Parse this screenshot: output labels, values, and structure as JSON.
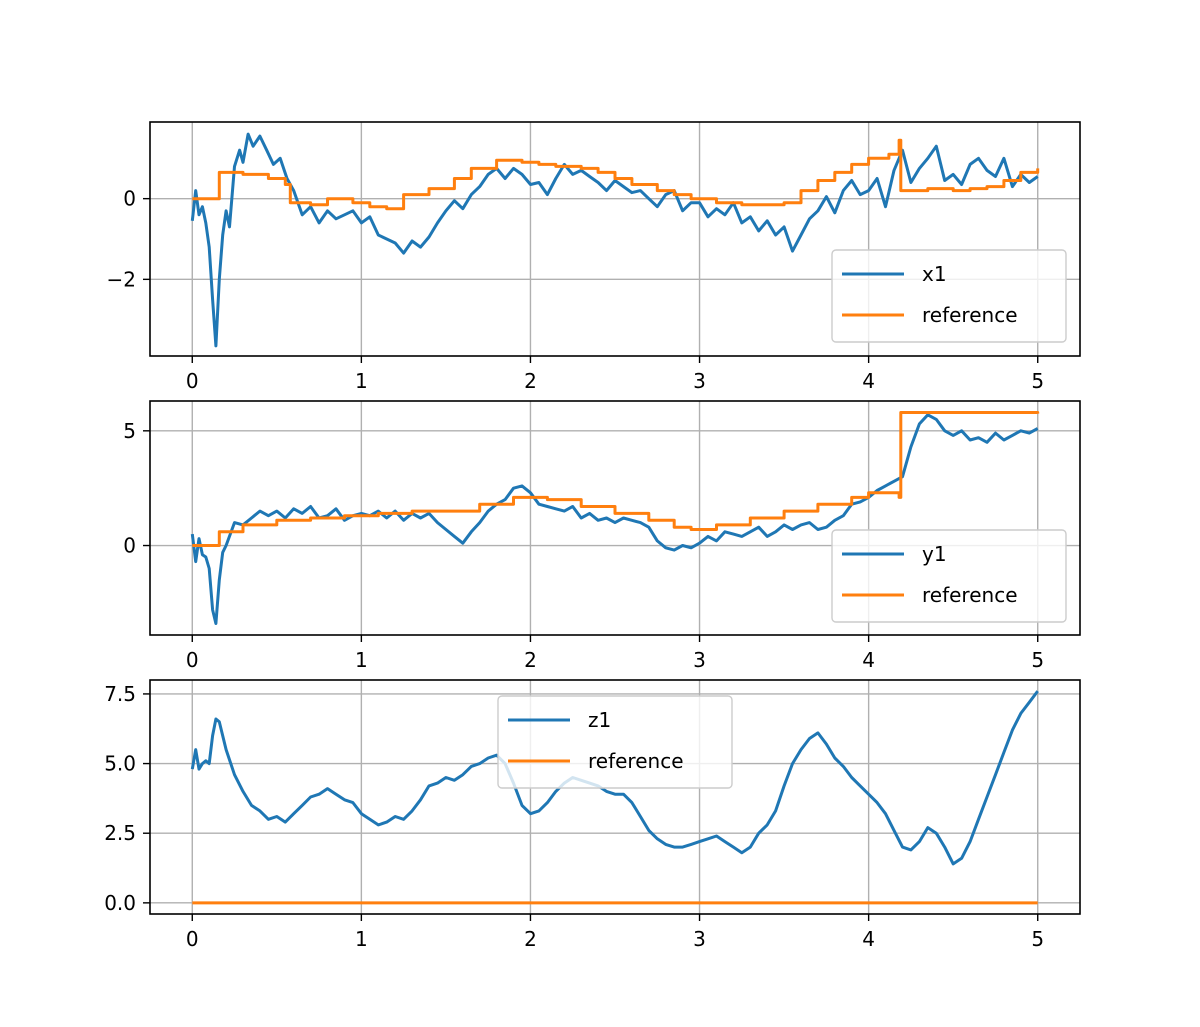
{
  "colors": {
    "series1": "#1f77b4",
    "reference": "#ff7f0e",
    "grid": "#b0b0b0"
  },
  "chart_data": [
    {
      "type": "line",
      "title": "",
      "xlabel": "",
      "ylabel": "",
      "xlim": [
        -0.25,
        5.25
      ],
      "ylim": [
        -3.9,
        1.9
      ],
      "xticks": [
        0,
        1,
        2,
        3,
        4,
        5
      ],
      "xtick_labels": [
        "0",
        "1",
        "2",
        "3",
        "4",
        "5"
      ],
      "yticks": [
        -2,
        0
      ],
      "ytick_labels": [
        "−2",
        "0"
      ],
      "grid": true,
      "legend_position": "lower right",
      "series": [
        {
          "name": "x1",
          "color": "#1f77b4",
          "x": [
            0,
            0.02,
            0.04,
            0.06,
            0.08,
            0.1,
            0.12,
            0.14,
            0.16,
            0.18,
            0.2,
            0.22,
            0.25,
            0.28,
            0.3,
            0.33,
            0.36,
            0.4,
            0.44,
            0.48,
            0.52,
            0.56,
            0.6,
            0.65,
            0.7,
            0.75,
            0.8,
            0.85,
            0.9,
            0.95,
            1.0,
            1.05,
            1.1,
            1.15,
            1.2,
            1.25,
            1.3,
            1.35,
            1.4,
            1.45,
            1.5,
            1.55,
            1.6,
            1.65,
            1.7,
            1.75,
            1.8,
            1.85,
            1.9,
            1.95,
            2.0,
            2.05,
            2.1,
            2.15,
            2.2,
            2.25,
            2.3,
            2.35,
            2.4,
            2.45,
            2.5,
            2.55,
            2.6,
            2.65,
            2.7,
            2.75,
            2.8,
            2.85,
            2.9,
            2.95,
            3.0,
            3.05,
            3.1,
            3.15,
            3.2,
            3.25,
            3.3,
            3.35,
            3.4,
            3.45,
            3.5,
            3.55,
            3.6,
            3.65,
            3.7,
            3.75,
            3.8,
            3.85,
            3.9,
            3.95,
            4.0,
            4.05,
            4.1,
            4.15,
            4.2,
            4.25,
            4.3,
            4.35,
            4.4,
            4.45,
            4.5,
            4.55,
            4.6,
            4.65,
            4.7,
            4.75,
            4.8,
            4.85,
            4.9,
            4.95,
            5.0
          ],
          "y": [
            -0.55,
            0.2,
            -0.4,
            -0.2,
            -0.6,
            -1.2,
            -2.5,
            -3.65,
            -2.0,
            -0.9,
            -0.3,
            -0.7,
            0.8,
            1.2,
            0.9,
            1.6,
            1.3,
            1.55,
            1.2,
            0.85,
            1.0,
            0.5,
            0.2,
            -0.4,
            -0.2,
            -0.6,
            -0.3,
            -0.5,
            -0.4,
            -0.3,
            -0.6,
            -0.45,
            -0.9,
            -1.0,
            -1.1,
            -1.35,
            -1.05,
            -1.2,
            -0.95,
            -0.6,
            -0.3,
            -0.05,
            -0.25,
            0.1,
            0.3,
            0.6,
            0.75,
            0.5,
            0.75,
            0.6,
            0.35,
            0.4,
            0.1,
            0.5,
            0.85,
            0.6,
            0.7,
            0.55,
            0.4,
            0.2,
            0.45,
            0.3,
            0.15,
            0.2,
            0.0,
            -0.2,
            0.1,
            0.2,
            -0.3,
            -0.1,
            -0.1,
            -0.45,
            -0.25,
            -0.4,
            -0.1,
            -0.6,
            -0.45,
            -0.8,
            -0.55,
            -0.9,
            -0.7,
            -1.3,
            -0.9,
            -0.5,
            -0.3,
            0.05,
            -0.35,
            0.2,
            0.45,
            0.1,
            0.2,
            0.5,
            -0.2,
            0.7,
            1.2,
            0.4,
            0.75,
            1.0,
            1.3,
            0.45,
            0.6,
            0.35,
            0.85,
            1.0,
            0.7,
            0.55,
            1.0,
            0.3,
            0.6,
            0.4,
            0.55
          ]
        },
        {
          "name": "reference",
          "color": "#ff7f0e",
          "step": true,
          "x": [
            0,
            0.15,
            0.16,
            0.3,
            0.45,
            0.55,
            0.58,
            0.7,
            0.8,
            0.88,
            0.95,
            1.05,
            1.15,
            1.25,
            1.4,
            1.55,
            1.65,
            1.8,
            1.95,
            2.05,
            2.15,
            2.3,
            2.4,
            2.5,
            2.6,
            2.75,
            2.85,
            2.95,
            3.1,
            3.25,
            3.35,
            3.5,
            3.6,
            3.7,
            3.8,
            3.9,
            4.0,
            4.12,
            4.18,
            4.19,
            4.35,
            4.45,
            4.5,
            4.6,
            4.7,
            4.8,
            4.9,
            5.0
          ],
          "y": [
            0.0,
            0.0,
            0.65,
            0.6,
            0.5,
            0.35,
            -0.1,
            -0.15,
            0.0,
            0.0,
            -0.1,
            -0.2,
            -0.25,
            0.1,
            0.25,
            0.5,
            0.75,
            0.95,
            0.9,
            0.85,
            0.8,
            0.75,
            0.65,
            0.5,
            0.35,
            0.2,
            0.1,
            0.0,
            -0.1,
            -0.15,
            -0.15,
            -0.1,
            0.2,
            0.45,
            0.65,
            0.85,
            1.0,
            1.1,
            1.45,
            0.2,
            0.25,
            0.25,
            0.2,
            0.25,
            0.3,
            0.45,
            0.65,
            0.75
          ]
        }
      ],
      "legend": [
        "x1",
        "reference"
      ]
    },
    {
      "type": "line",
      "title": "",
      "xlabel": "",
      "ylabel": "",
      "xlim": [
        -0.25,
        5.25
      ],
      "ylim": [
        -3.9,
        6.3
      ],
      "xticks": [
        0,
        1,
        2,
        3,
        4,
        5
      ],
      "xtick_labels": [
        "0",
        "1",
        "2",
        "3",
        "4",
        "5"
      ],
      "yticks": [
        0,
        5
      ],
      "ytick_labels": [
        "0",
        "5"
      ],
      "grid": true,
      "legend_position": "lower right",
      "series": [
        {
          "name": "y1",
          "color": "#1f77b4",
          "x": [
            0,
            0.02,
            0.04,
            0.06,
            0.08,
            0.1,
            0.12,
            0.14,
            0.16,
            0.18,
            0.2,
            0.25,
            0.3,
            0.35,
            0.4,
            0.45,
            0.5,
            0.55,
            0.6,
            0.65,
            0.7,
            0.75,
            0.8,
            0.85,
            0.9,
            0.95,
            1.0,
            1.05,
            1.1,
            1.15,
            1.2,
            1.25,
            1.3,
            1.35,
            1.4,
            1.45,
            1.5,
            1.55,
            1.6,
            1.65,
            1.7,
            1.75,
            1.8,
            1.85,
            1.9,
            1.95,
            2.0,
            2.05,
            2.1,
            2.15,
            2.2,
            2.25,
            2.3,
            2.35,
            2.4,
            2.45,
            2.5,
            2.55,
            2.6,
            2.65,
            2.7,
            2.75,
            2.8,
            2.85,
            2.9,
            2.95,
            3.0,
            3.05,
            3.1,
            3.15,
            3.2,
            3.25,
            3.3,
            3.35,
            3.4,
            3.45,
            3.5,
            3.55,
            3.6,
            3.65,
            3.7,
            3.75,
            3.8,
            3.85,
            3.9,
            3.95,
            4.0,
            4.05,
            4.1,
            4.15,
            4.2,
            4.25,
            4.3,
            4.35,
            4.4,
            4.45,
            4.5,
            4.55,
            4.6,
            4.65,
            4.7,
            4.75,
            4.8,
            4.85,
            4.9,
            4.95,
            5.0
          ],
          "y": [
            0.5,
            -0.7,
            0.3,
            -0.4,
            -0.5,
            -1.0,
            -2.8,
            -3.4,
            -1.5,
            -0.3,
            0.0,
            1.0,
            0.9,
            1.2,
            1.5,
            1.3,
            1.5,
            1.2,
            1.6,
            1.4,
            1.7,
            1.2,
            1.3,
            1.6,
            1.1,
            1.3,
            1.4,
            1.3,
            1.5,
            1.2,
            1.5,
            1.1,
            1.4,
            1.2,
            1.4,
            1.0,
            0.7,
            0.4,
            0.1,
            0.6,
            1.0,
            1.5,
            1.8,
            2.0,
            2.5,
            2.6,
            2.3,
            1.8,
            1.7,
            1.6,
            1.5,
            1.7,
            1.2,
            1.4,
            1.1,
            1.2,
            1.0,
            1.2,
            1.1,
            1.0,
            0.8,
            0.2,
            -0.1,
            -0.2,
            0.0,
            -0.1,
            0.1,
            0.4,
            0.2,
            0.6,
            0.5,
            0.4,
            0.6,
            0.8,
            0.4,
            0.6,
            0.9,
            0.7,
            0.9,
            1.0,
            0.7,
            0.8,
            1.1,
            1.3,
            1.8,
            1.9,
            2.1,
            2.4,
            2.6,
            2.8,
            3.0,
            4.3,
            5.3,
            5.7,
            5.5,
            5.0,
            4.8,
            5.0,
            4.6,
            4.7,
            4.5,
            4.9,
            4.6,
            4.8,
            5.0,
            4.9,
            5.1
          ]
        },
        {
          "name": "reference",
          "color": "#ff7f0e",
          "step": true,
          "x": [
            0,
            0.15,
            0.16,
            0.3,
            0.5,
            0.7,
            0.9,
            1.1,
            1.3,
            1.5,
            1.7,
            1.9,
            2.1,
            2.3,
            2.5,
            2.7,
            2.85,
            2.95,
            3.1,
            3.3,
            3.5,
            3.7,
            3.9,
            4.0,
            4.1,
            4.18,
            4.19,
            4.5,
            5.0
          ],
          "y": [
            0.0,
            0.0,
            0.6,
            0.9,
            1.1,
            1.2,
            1.3,
            1.4,
            1.5,
            1.5,
            1.8,
            2.1,
            2.0,
            1.7,
            1.4,
            1.1,
            0.8,
            0.7,
            0.9,
            1.2,
            1.5,
            1.8,
            2.1,
            2.3,
            2.3,
            2.1,
            5.8,
            5.8,
            5.75
          ]
        }
      ],
      "legend": [
        "y1",
        "reference"
      ]
    },
    {
      "type": "line",
      "title": "",
      "xlabel": "",
      "ylabel": "",
      "xlim": [
        -0.25,
        5.25
      ],
      "ylim": [
        -0.4,
        8.0
      ],
      "xticks": [
        0,
        1,
        2,
        3,
        4,
        5
      ],
      "xtick_labels": [
        "0",
        "1",
        "2",
        "3",
        "4",
        "5"
      ],
      "yticks": [
        0.0,
        2.5,
        5.0,
        7.5
      ],
      "ytick_labels": [
        "0.0",
        "2.5",
        "5.0",
        "7.5"
      ],
      "grid": true,
      "legend_position": "upper center",
      "series": [
        {
          "name": "z1",
          "color": "#1f77b4",
          "x": [
            0,
            0.02,
            0.04,
            0.06,
            0.08,
            0.1,
            0.12,
            0.14,
            0.16,
            0.2,
            0.25,
            0.3,
            0.35,
            0.4,
            0.45,
            0.5,
            0.55,
            0.6,
            0.65,
            0.7,
            0.75,
            0.8,
            0.85,
            0.9,
            0.95,
            1.0,
            1.05,
            1.1,
            1.15,
            1.2,
            1.25,
            1.3,
            1.35,
            1.4,
            1.45,
            1.5,
            1.55,
            1.6,
            1.65,
            1.7,
            1.75,
            1.8,
            1.85,
            1.9,
            1.95,
            2.0,
            2.05,
            2.1,
            2.15,
            2.2,
            2.25,
            2.3,
            2.35,
            2.4,
            2.45,
            2.5,
            2.55,
            2.6,
            2.65,
            2.7,
            2.75,
            2.8,
            2.85,
            2.9,
            2.95,
            3.0,
            3.05,
            3.1,
            3.15,
            3.2,
            3.25,
            3.3,
            3.35,
            3.4,
            3.45,
            3.5,
            3.55,
            3.6,
            3.65,
            3.7,
            3.75,
            3.8,
            3.85,
            3.9,
            3.95,
            4.0,
            4.05,
            4.1,
            4.15,
            4.2,
            4.25,
            4.3,
            4.35,
            4.4,
            4.45,
            4.5,
            4.55,
            4.6,
            4.65,
            4.7,
            4.75,
            4.8,
            4.85,
            4.9,
            4.95,
            5.0
          ],
          "y": [
            4.8,
            5.5,
            4.8,
            5.0,
            5.1,
            5.0,
            6.0,
            6.6,
            6.5,
            5.5,
            4.6,
            4.0,
            3.5,
            3.3,
            3.0,
            3.1,
            2.9,
            3.2,
            3.5,
            3.8,
            3.9,
            4.1,
            3.9,
            3.7,
            3.6,
            3.2,
            3.0,
            2.8,
            2.9,
            3.1,
            3.0,
            3.3,
            3.7,
            4.2,
            4.3,
            4.5,
            4.4,
            4.6,
            4.9,
            5.0,
            5.2,
            5.3,
            5.0,
            4.3,
            3.5,
            3.2,
            3.3,
            3.6,
            4.0,
            4.3,
            4.5,
            4.4,
            4.3,
            4.2,
            4.0,
            3.9,
            3.9,
            3.6,
            3.1,
            2.6,
            2.3,
            2.1,
            2.0,
            2.0,
            2.1,
            2.2,
            2.3,
            2.4,
            2.2,
            2.0,
            1.8,
            2.0,
            2.5,
            2.8,
            3.3,
            4.2,
            5.0,
            5.5,
            5.9,
            6.1,
            5.7,
            5.2,
            4.9,
            4.5,
            4.2,
            3.9,
            3.6,
            3.2,
            2.6,
            2.0,
            1.9,
            2.2,
            2.7,
            2.5,
            2.0,
            1.4,
            1.6,
            2.2,
            3.0,
            3.8,
            4.6,
            5.4,
            6.2,
            6.8,
            7.2,
            7.6
          ]
        },
        {
          "name": "reference",
          "color": "#ff7f0e",
          "x": [
            0,
            5.0
          ],
          "y": [
            0.0,
            0.0
          ]
        }
      ],
      "legend": [
        "z1",
        "reference"
      ]
    }
  ]
}
